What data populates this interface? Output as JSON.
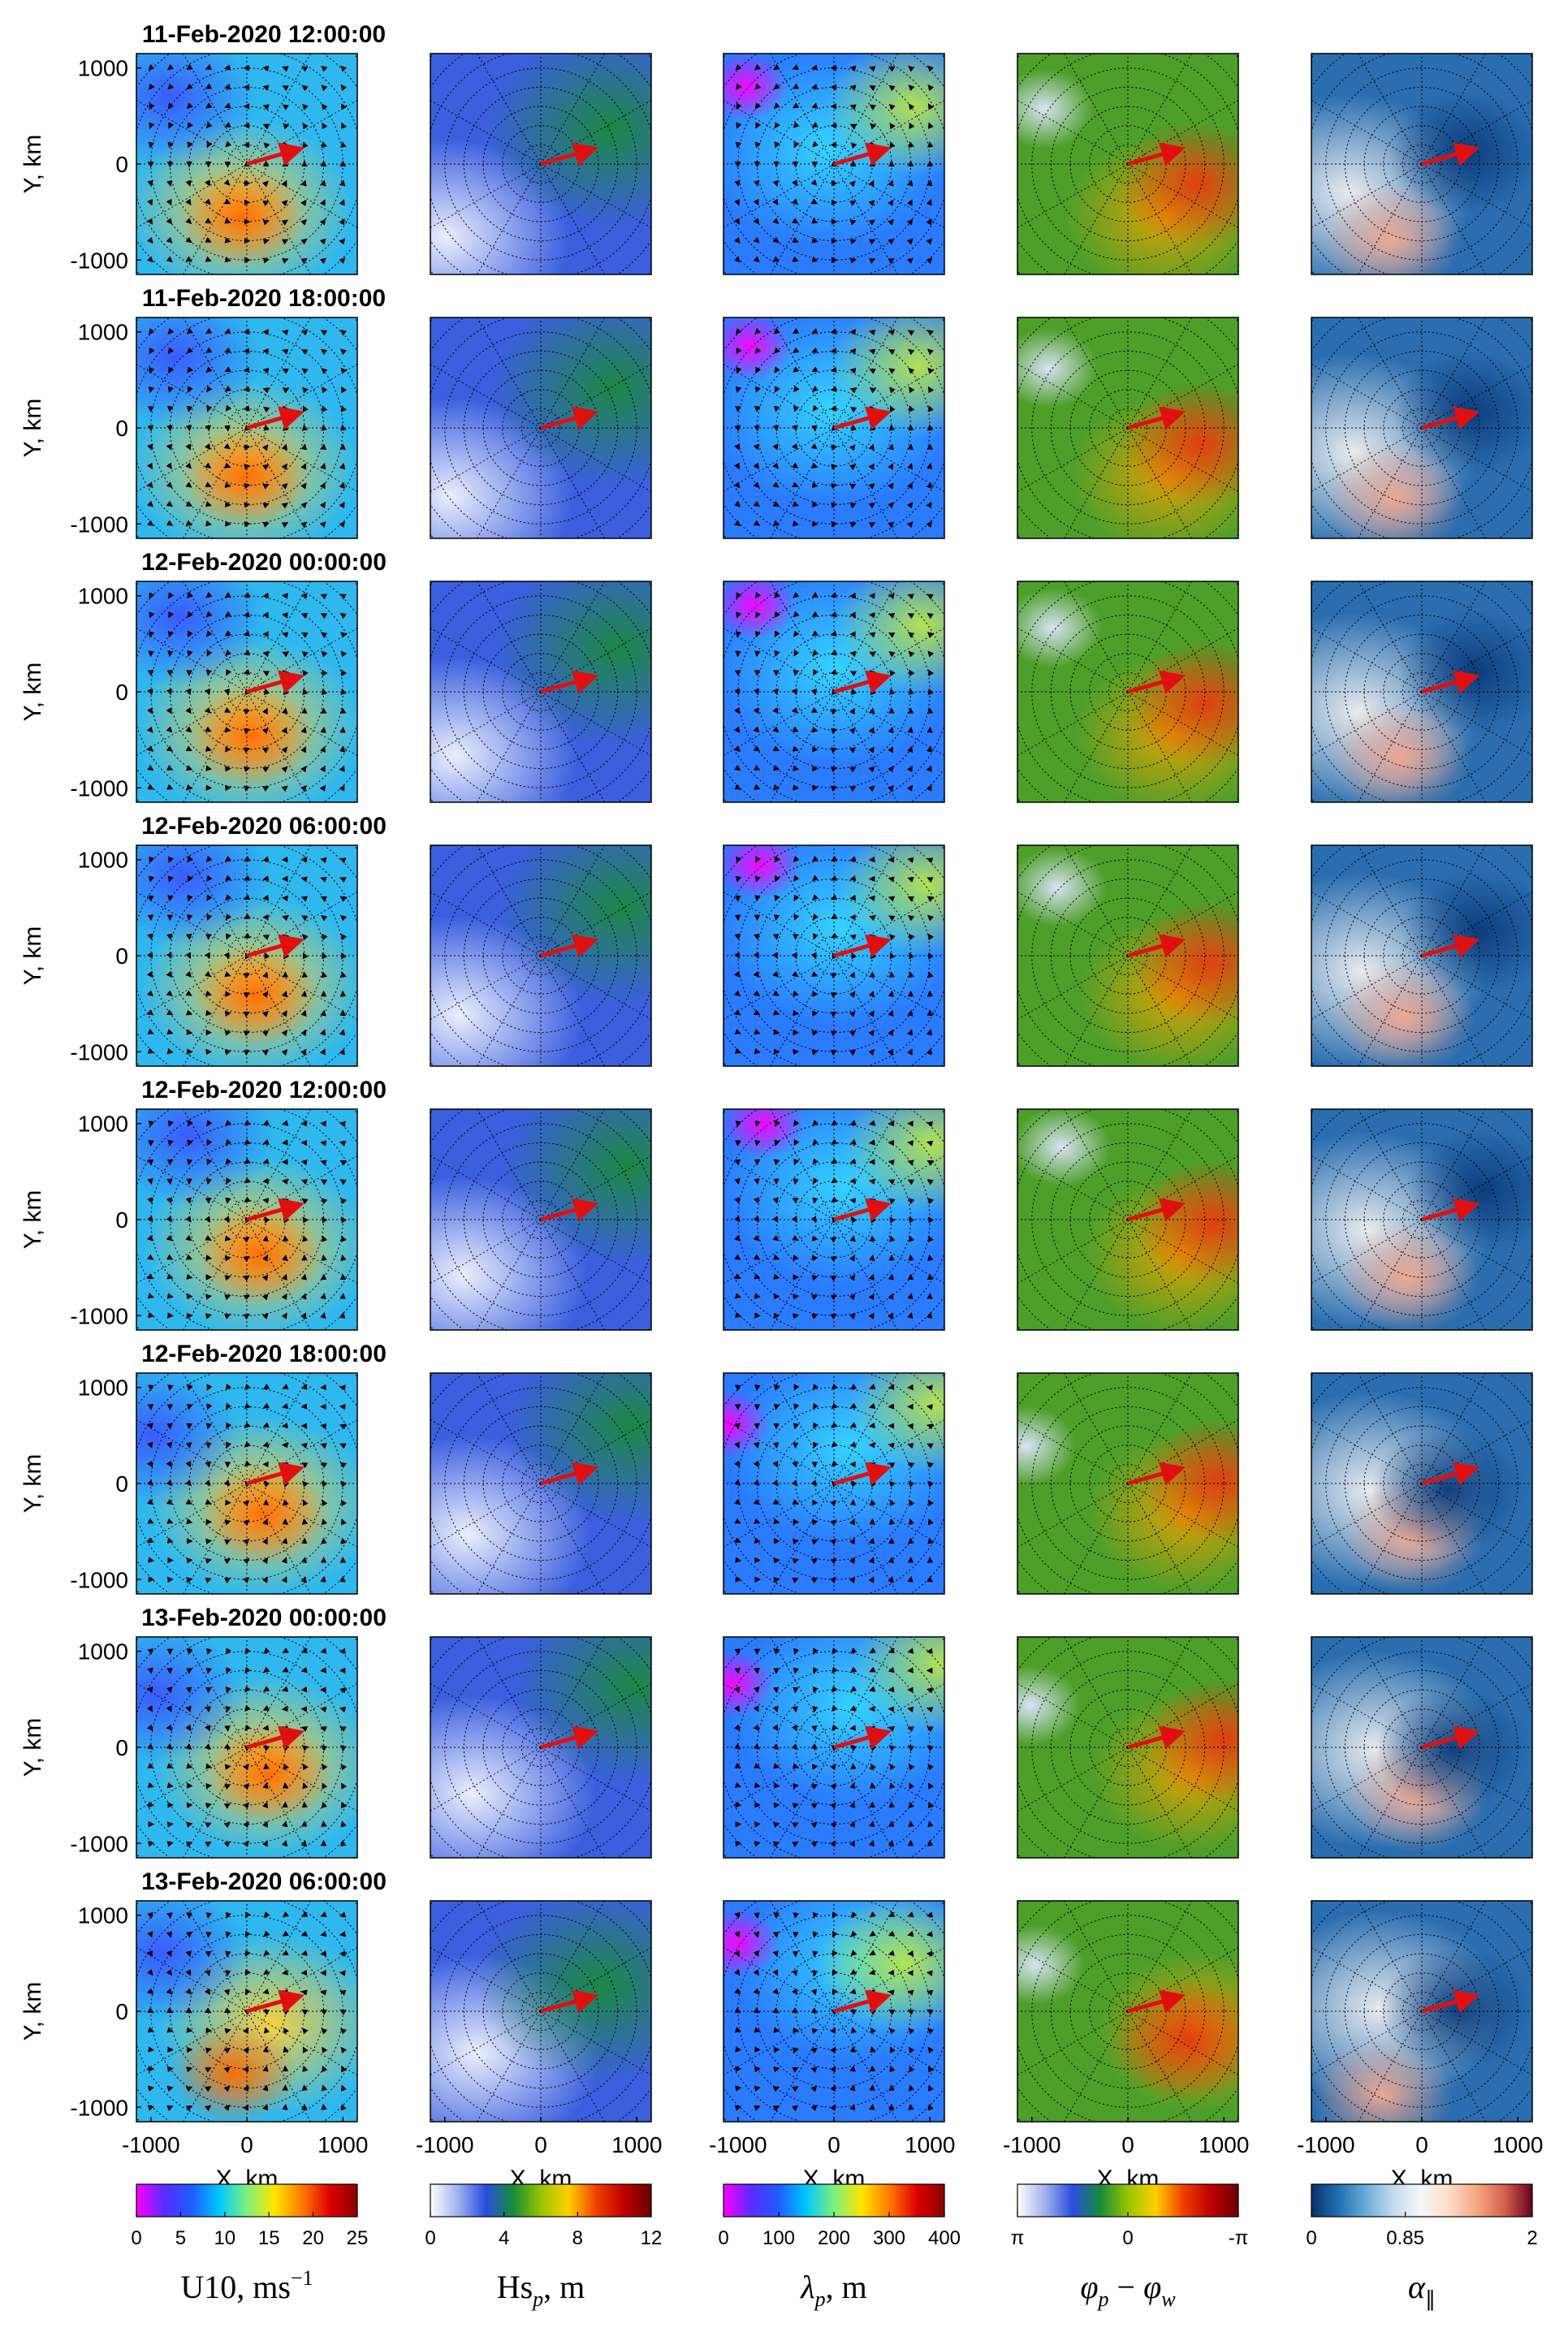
{
  "chart_data": {
    "type": "heatmap",
    "grid": true,
    "rows": [
      {
        "title": "11-Feb-2020 12:00:00"
      },
      {
        "title": "11-Feb-2020 18:00:00"
      },
      {
        "title": "12-Feb-2020 00:00:00"
      },
      {
        "title": "12-Feb-2020 06:00:00"
      },
      {
        "title": "12-Feb-2020 12:00:00"
      },
      {
        "title": "12-Feb-2020 18:00:00"
      },
      {
        "title": "13-Feb-2020 00:00:00"
      },
      {
        "title": "13-Feb-2020 06:00:00"
      }
    ],
    "xlabel": "X, km",
    "ylabel": "Y, km",
    "xlim": [
      -1150,
      1150
    ],
    "ylim": [
      -1150,
      1150
    ],
    "x_ticks": [
      -1000,
      0,
      1000
    ],
    "y_ticks": [
      1000,
      0,
      -1000
    ],
    "x_tick_labels": [
      "-1000",
      "0",
      "1000"
    ],
    "y_tick_labels": [
      "1000",
      "0",
      "-1000"
    ],
    "columns": [
      {
        "variable": "U10",
        "colorbar_label": "U10, ms",
        "colorbar_label_sup": "−1",
        "range": [
          0,
          25
        ],
        "ticks": [
          0,
          5,
          10,
          15,
          20,
          25
        ],
        "tick_labels": [
          "0",
          "5",
          "10",
          "15",
          "20",
          "25"
        ],
        "colormap": [
          "#ff00ff",
          "#5a2bff",
          "#1f5dff",
          "#00c8ff",
          "#7cf07c",
          "#ffe600",
          "#ff7a00",
          "#e00000",
          "#8a0000"
        ]
      },
      {
        "variable": "Hs_p",
        "colorbar_label_main": "Hs",
        "colorbar_label_sub": "p",
        "colorbar_label_tail": ", m",
        "range": [
          0,
          12
        ],
        "ticks": [
          0,
          4,
          8,
          12
        ],
        "tick_labels": [
          "0",
          "4",
          "8",
          "12"
        ],
        "colormap": [
          "#ffffff",
          "#9fb1ec",
          "#2a4ee0",
          "#168c3a",
          "#97c400",
          "#ffd000",
          "#f04000",
          "#c00000",
          "#6a0000"
        ]
      },
      {
        "variable": "lambda_p",
        "colorbar_label_main": "λ",
        "colorbar_label_sub": "p",
        "colorbar_label_tail": ", m",
        "range": [
          0,
          400
        ],
        "ticks": [
          0,
          100,
          200,
          300,
          400
        ],
        "tick_labels": [
          "0",
          "100",
          "200",
          "300",
          "400"
        ],
        "colormap": [
          "#ff00ff",
          "#5a2bff",
          "#1f5dff",
          "#00c8ff",
          "#7cf07c",
          "#ffe600",
          "#ff7a00",
          "#e00000",
          "#8a0000"
        ]
      },
      {
        "variable": "phi_p - phi_w",
        "colorbar_label_a": "φ",
        "colorbar_label_a_sub": "p",
        "colorbar_label_mid": " − ",
        "colorbar_label_b": "φ",
        "colorbar_label_b_sub": "w",
        "range": [
          3.14159,
          -3.14159
        ],
        "ticks": [
          3.14159,
          0,
          -3.14159
        ],
        "tick_labels": [
          "π",
          "0",
          "-π"
        ],
        "colormap": [
          "#ffffff",
          "#9fb1ec",
          "#2a4ee0",
          "#168c3a",
          "#97c400",
          "#ffd000",
          "#f04000",
          "#c00000",
          "#6a0000"
        ]
      },
      {
        "variable": "alpha_parallel",
        "colorbar_label_main": "α",
        "colorbar_label_sub": "∥",
        "range": [
          0,
          2
        ],
        "ticks": [
          0,
          0.85,
          2
        ],
        "tick_labels": [
          "0",
          "0.85",
          "2"
        ],
        "colormap": [
          "#08306b",
          "#2171b5",
          "#6baed6",
          "#c6dbef",
          "#f7f7f7",
          "#fddbc7",
          "#f4a582",
          "#d6604d",
          "#67001f"
        ]
      }
    ]
  }
}
